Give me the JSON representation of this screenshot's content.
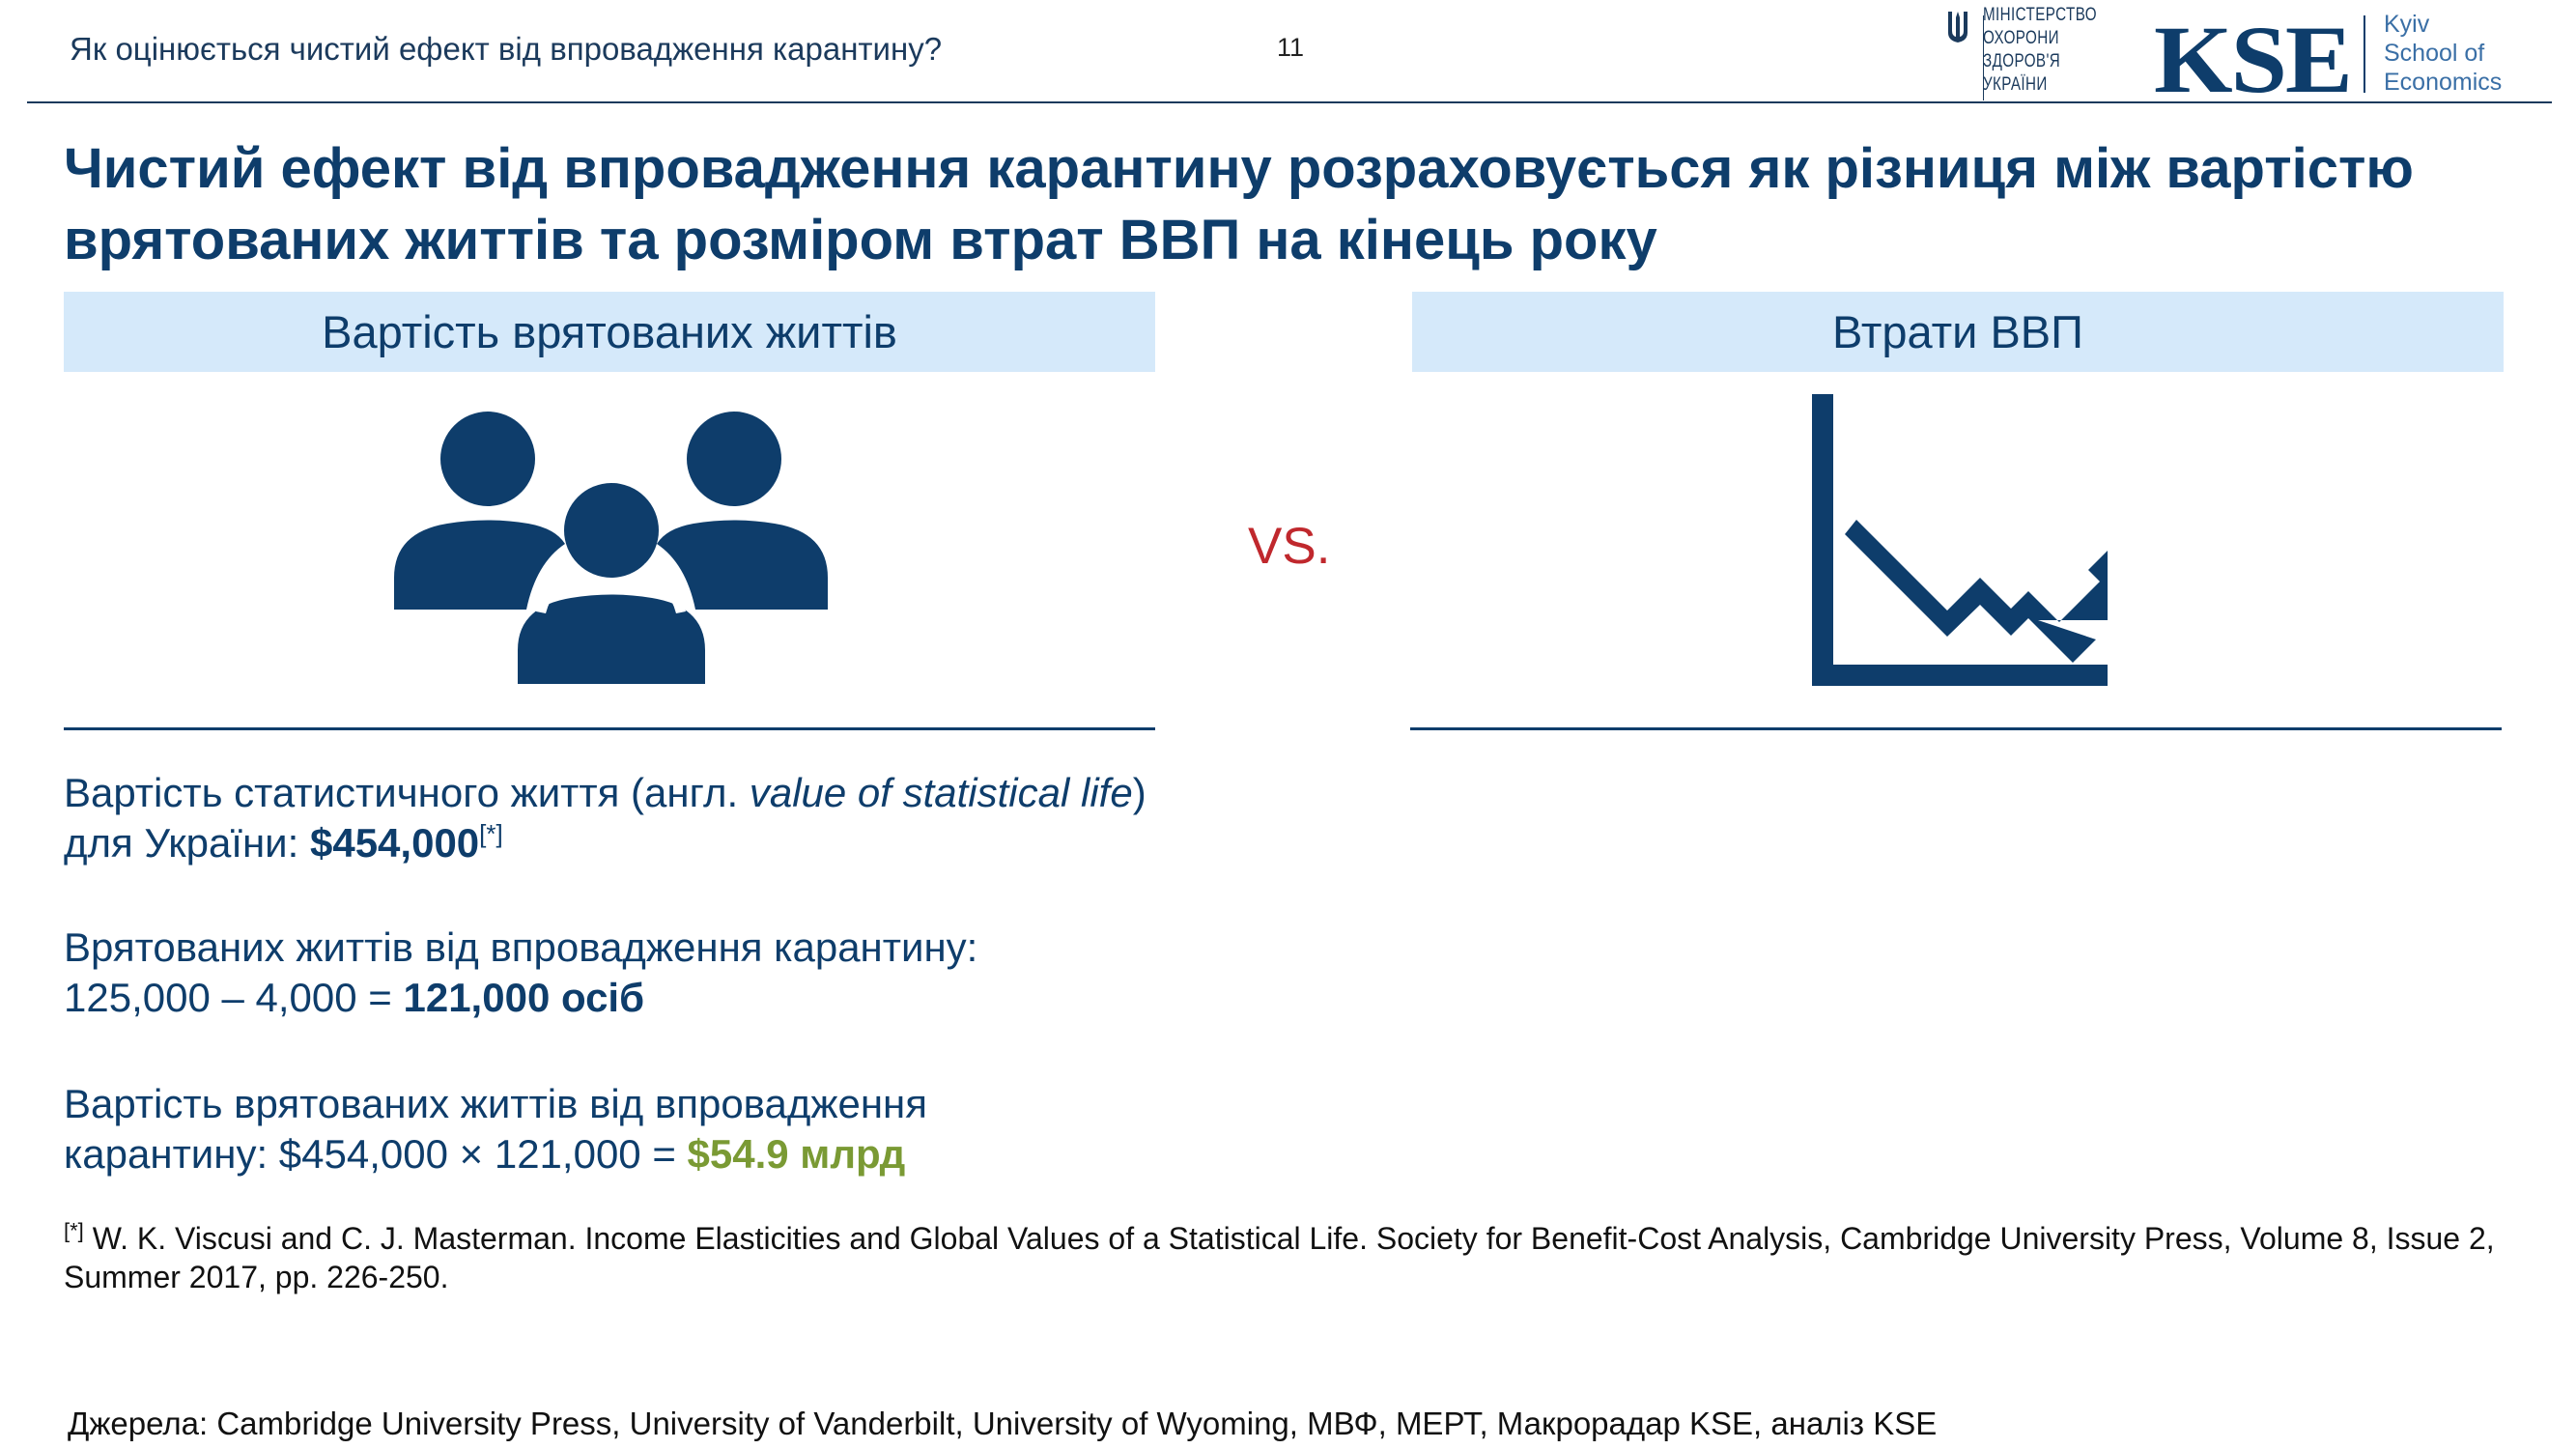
{
  "header": {
    "question": "Як оцінюється чистий ефект від впровадження карантину?",
    "page_number": "11",
    "ministry_logo": [
      "МІНІСТЕРСТВО",
      "ОХОРОНИ",
      "ЗДОРОВ'Я",
      "УКРАЇНИ"
    ],
    "kse_logo_text": "KSE",
    "kse_name": [
      "Kyiv",
      "School of",
      "Economics"
    ]
  },
  "title": "Чистий ефект від впровадження карантину розраховується як різниця між вартістю врятованих життів та розміром втрат ВВП на кінець року",
  "left_panel": {
    "heading": "Вартість врятованих життів",
    "icon": "people-group-icon",
    "p1_a": "Вартість статистичного життя (англ. ",
    "p1_italic": "value of statistical life",
    "p1_b": ") для України: ",
    "p1_value": "$454,000",
    "p1_ref": "[*]",
    "p2_line1": "Врятованих життів від впровадження карантину:",
    "p2_a": "125,000 – 4,000 = ",
    "p2_value": "121,000 осіб",
    "p3_line1": "Вартість врятованих життів від впровадження",
    "p3_a": "карантину: $454,000 × 121,000 = ",
    "p3_value": "$54.9 млрд"
  },
  "vs_label": "VS.",
  "right_panel": {
    "heading": "Втрати ВВП",
    "icon": "chart-decline-icon"
  },
  "footnote": {
    "ref": "[*]",
    "text": "W. K. Viscusi and C. J. Masterman. Income Elasticities and Global Values of a Statistical Life. Society for Benefit-Cost Analysis, Cambridge University Press, Volume 8, Issue 2, Summer 2017, pp. 226-250."
  },
  "sources": "Джерела: Cambridge University Press, University of Vanderbilt, University of Wyoming, МВФ, МЕРТ, Макрорадар KSE, аналіз KSE",
  "colors": {
    "navy": "#0e3d6b",
    "heading_bg": "#d5e9fa",
    "vs_red": "#c0282d",
    "highlight_green": "#7a9a34"
  }
}
